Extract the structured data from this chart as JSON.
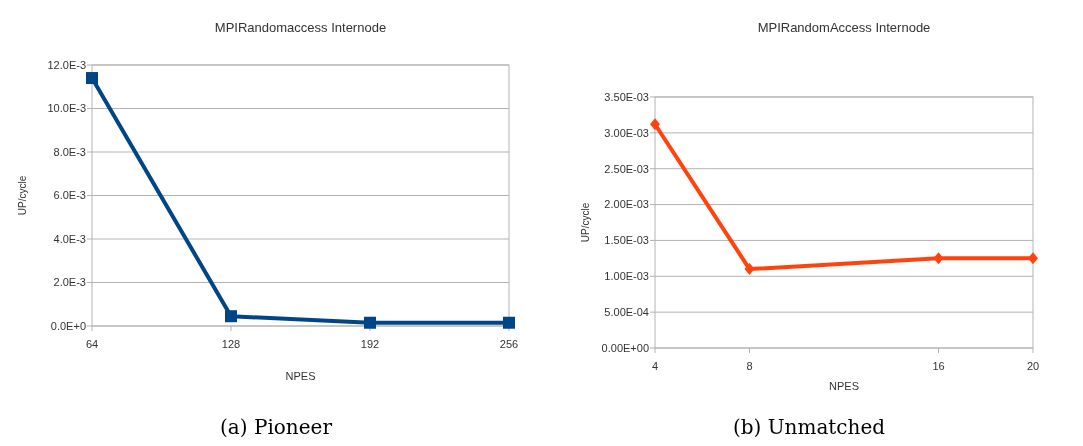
{
  "chart_data": [
    {
      "type": "line",
      "title": "MPIRandomaccess Internode",
      "xlabel": "NPES",
      "ylabel": "UP/cycle",
      "x": [
        64,
        128,
        192,
        256
      ],
      "series": [
        {
          "color": "#004586",
          "values": [
            0.0114,
            0.00045,
            0.00015,
            0.00015
          ]
        }
      ],
      "xlim": [
        64,
        256
      ],
      "xticks": [
        64,
        128,
        192,
        256
      ],
      "ylim": [
        0,
        0.012
      ],
      "yticks": [
        {
          "value": 0,
          "label": "0.0E+0"
        },
        {
          "value": 0.002,
          "label": "2.0E-3"
        },
        {
          "value": 0.004,
          "label": "4.0E-3"
        },
        {
          "value": 0.006,
          "label": "6.0E-3"
        },
        {
          "value": 0.008,
          "label": "8.0E-3"
        },
        {
          "value": 0.01,
          "label": "10.0E-3"
        },
        {
          "value": 0.012,
          "label": "12.0E-3"
        }
      ],
      "grid": "y",
      "marker": "square",
      "line_style": "solid",
      "annotations": [
        "(a) Pioneer"
      ]
    },
    {
      "type": "line",
      "title": "MPIRandomAccess  Internode",
      "xlabel": "NPES",
      "ylabel": "UP/cycle",
      "x": [
        4,
        8,
        16,
        20
      ],
      "series": [
        {
          "color": "#ff420e",
          "values": [
            0.00312,
            0.0011,
            0.00125,
            0.00125
          ]
        }
      ],
      "xlim": [
        4,
        20
      ],
      "xticks": [
        4,
        8,
        16,
        20
      ],
      "ylim": [
        0,
        0.0035
      ],
      "yticks": [
        {
          "value": 0,
          "label": "0.00E+00"
        },
        {
          "value": 0.0005,
          "label": "5.00E-04"
        },
        {
          "value": 0.001,
          "label": "1.00E-03"
        },
        {
          "value": 0.0015,
          "label": "1.50E-03"
        },
        {
          "value": 0.002,
          "label": "2.00E-03"
        },
        {
          "value": 0.0025,
          "label": "2.50E-03"
        },
        {
          "value": 0.003,
          "label": "3.00E-03"
        },
        {
          "value": 0.0035,
          "label": "3.50E-03"
        }
      ],
      "grid": "y",
      "marker": "diamond",
      "line_style": "solid",
      "annotations": [
        "(b) Unmatched"
      ]
    }
  ]
}
